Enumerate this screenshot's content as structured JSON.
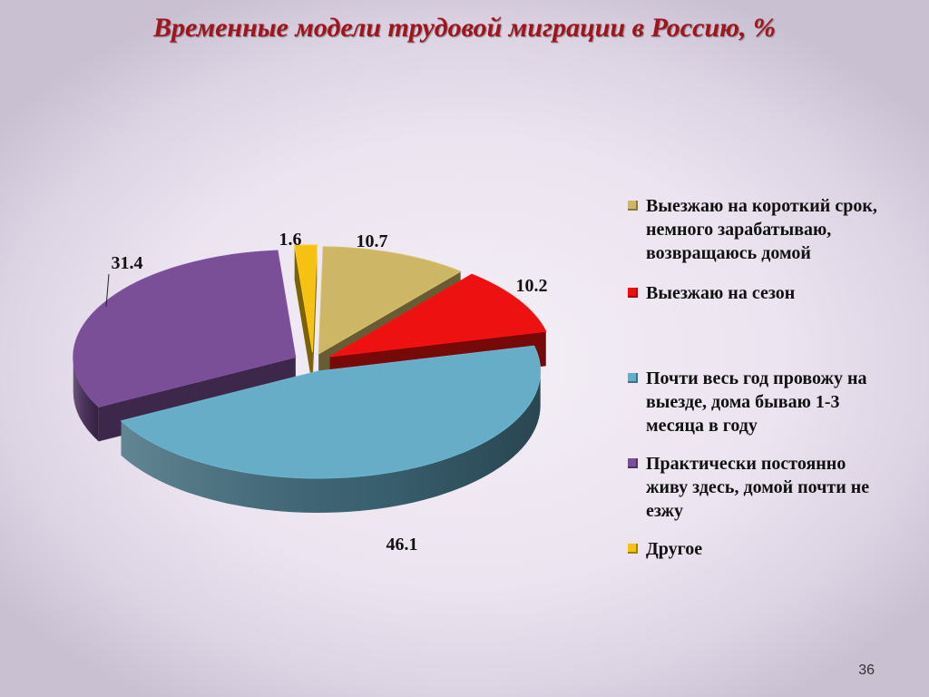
{
  "title": "Временные модели трудовой миграции в Россию, %",
  "slide_number": "36",
  "chart_data": {
    "type": "pie",
    "title": "Временные модели трудовой миграции в Россию, %",
    "legend_position": "right",
    "categories": [
      "Выезжаю на короткий срок, немного зарабатываю, возвращаюсь домой",
      "Выезжаю на сезон",
      "Почти весь год провожу на выезде, дома бываю 1-3 месяца в году",
      "Практически постоянно живу здесь, домой почти не езжу",
      "Другое"
    ],
    "values": [
      10.7,
      10.2,
      46.1,
      31.4,
      1.6
    ],
    "value_labels": [
      "10.7",
      "10.2",
      "46.1",
      "31.4",
      "1.6"
    ],
    "colors": [
      "#cdb767",
      "#ee1111",
      "#68adc8",
      "#7a4f98",
      "#f5c214"
    ]
  }
}
